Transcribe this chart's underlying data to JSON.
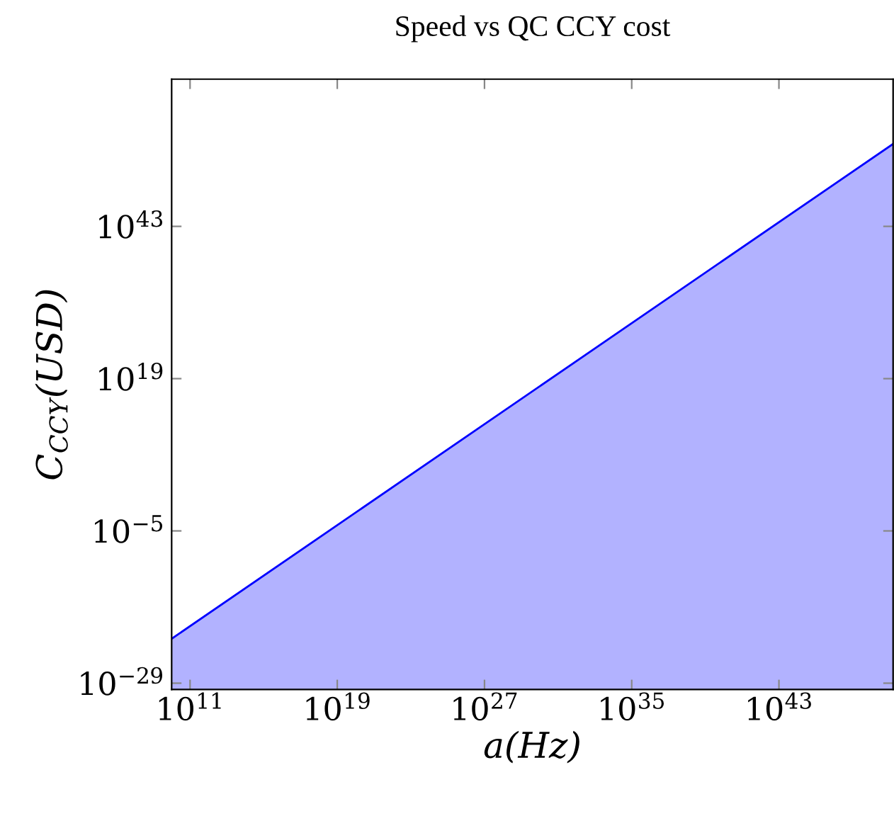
{
  "chart_data": {
    "type": "area",
    "title": "Speed vs QC CCY cost",
    "xlabel": "a(Hz)",
    "ylabel": "C$_{CCY}$(USD)",
    "log": "xy",
    "series": [
      {
        "color": "#0000ff",
        "x": [
          10000000000.0,
          1.6e+49
        ],
        "values": [
          1e-22,
          1e+56
        ]
      }
    ],
    "xlim": [
      10000000000.0,
      1.6e+49
    ],
    "ylim": [
      1e-30,
      1.6e+66
    ],
    "xticks": [
      {
        "value": 100000000000.0,
        "label": "10$^{11}$"
      },
      {
        "value": 1e+19,
        "label": "10$^{19}$"
      },
      {
        "value": 1e+27,
        "label": "10$^{27}$"
      },
      {
        "value": 1e+35,
        "label": "10$^{35}$"
      },
      {
        "value": 1e+43,
        "label": "10$^{43}$"
      }
    ],
    "yticks": [
      {
        "value": 1e-29,
        "label": "10$^{−29}$"
      },
      {
        "value": 1e-05,
        "label": "10$^{−5}$"
      },
      {
        "value": 1e+19,
        "label": "10$^{19}$"
      },
      {
        "value": 1e+43,
        "label": "10$^{43}$"
      }
    ],
    "grid": false,
    "legend": false
  }
}
